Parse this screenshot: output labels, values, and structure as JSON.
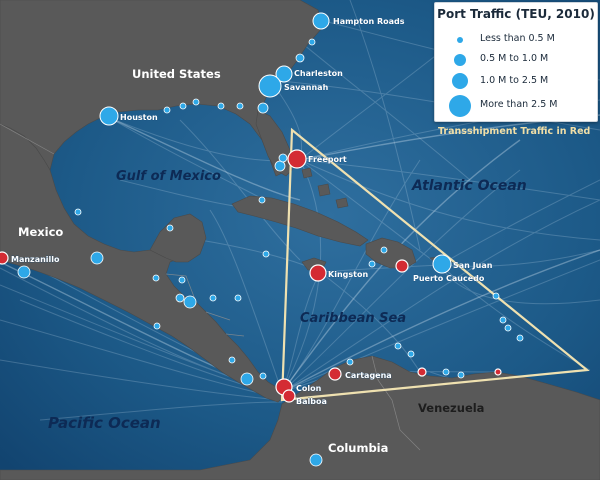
{
  "map": {
    "colors": {
      "land": "#595959",
      "water": "#16507e",
      "port_fill": "#2ea8e8",
      "transshipment_fill": "#d42b33",
      "triangle": "#efe1b0"
    },
    "regions": {
      "united_states": "United States",
      "mexico": "Mexico",
      "venezuela": "Venezuela",
      "columbia": "Columbia"
    },
    "water_bodies": {
      "gulf": "Gulf of Mexico",
      "atlantic": "Atlantic Ocean",
      "caribbean": "Caribbean Sea",
      "pacific": "Pacific Ocean"
    },
    "ports": [
      {
        "name": "Hampton Roads",
        "traffic": "1.0 M to 2.5 M",
        "transshipment": false
      },
      {
        "name": "Charleston",
        "traffic": "1.0 M to 2.5 M",
        "transshipment": false
      },
      {
        "name": "Savannah",
        "traffic": "More than 2.5 M",
        "transshipment": false
      },
      {
        "name": "Houston",
        "traffic": "1.0 M to 2.5 M",
        "transshipment": false
      },
      {
        "name": "Freeport",
        "traffic": "1.0 M to 2.5 M",
        "transshipment": true
      },
      {
        "name": "Manzanillo",
        "traffic": "1.0 M to 2.5 M",
        "transshipment": true
      },
      {
        "name": "Kingston",
        "traffic": "1.0 M to 2.5 M",
        "transshipment": true
      },
      {
        "name": "San Juan",
        "traffic": "1.0 M to 2.5 M",
        "transshipment": false
      },
      {
        "name": "Puerto Caucedo",
        "traffic": "0.5 M to 1.0 M",
        "transshipment": true
      },
      {
        "name": "Cartagena",
        "traffic": "0.5 M to 1.0 M",
        "transshipment": true
      },
      {
        "name": "Colon",
        "traffic": "1.0 M to 2.5 M",
        "transshipment": true
      },
      {
        "name": "Balboa",
        "traffic": "1.0 M to 2.5 M",
        "transshipment": true
      }
    ]
  },
  "legend": {
    "title": "Port Traffic (TEU, 2010)",
    "items": [
      {
        "label": "Less than 0.5 M"
      },
      {
        "label": "0.5 M to 1.0 M"
      },
      {
        "label": "1.0 M to 2.5 M"
      },
      {
        "label": "More than 2.5 M"
      }
    ],
    "transshipment_note": "Transshipment Traffic in Red"
  }
}
